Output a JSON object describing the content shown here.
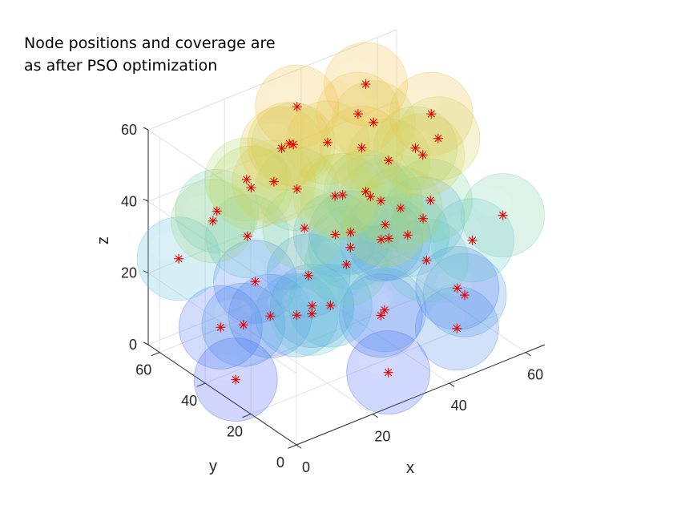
{
  "chart_data": {
    "type": "scatter3d",
    "title_lines": [
      "Node positions and coverage are",
      "as after PSO optimization"
    ],
    "xlabel": "x",
    "ylabel": "y",
    "zlabel": "z",
    "xlim": [
      0,
      65
    ],
    "ylim": [
      0,
      65
    ],
    "zlim": [
      0,
      60
    ],
    "xticks": [
      "0",
      "20",
      "40",
      "60"
    ],
    "yticks": [
      "0",
      "20",
      "40",
      "60"
    ],
    "zticks": [
      "0",
      "20",
      "40",
      "60"
    ],
    "view": "3d-isometric",
    "grid": true,
    "marker": "asterisk",
    "marker_color": "#e60000",
    "sphere_colormap": [
      "#4a5bff",
      "#4f8ee8",
      "#5fc3e0",
      "#7fd4a4",
      "#c8d85c",
      "#f2c24a"
    ],
    "sphere_opacity": "semi-transparent",
    "nodes": [
      [
        5,
        35,
        1
      ],
      [
        30,
        10,
        3
      ],
      [
        60,
        30,
        5
      ],
      [
        40,
        30,
        6
      ],
      [
        10,
        50,
        7
      ],
      [
        20,
        45,
        8
      ],
      [
        25,
        60,
        9
      ],
      [
        55,
        55,
        10
      ],
      [
        45,
        5,
        11
      ],
      [
        10,
        40,
        12
      ],
      [
        25,
        35,
        13
      ],
      [
        35,
        20,
        14
      ],
      [
        50,
        10,
        16
      ],
      [
        30,
        45,
        15
      ],
      [
        60,
        45,
        18
      ],
      [
        15,
        25,
        19
      ],
      [
        40,
        50,
        20
      ],
      [
        50,
        35,
        22
      ],
      [
        5,
        60,
        24
      ],
      [
        35,
        35,
        25
      ],
      [
        20,
        55,
        26
      ],
      [
        55,
        15,
        27
      ],
      [
        10,
        10,
        28
      ],
      [
        40,
        10,
        30
      ],
      [
        25,
        20,
        31
      ],
      [
        45,
        45,
        32
      ],
      [
        15,
        60,
        33
      ],
      [
        60,
        10,
        34
      ],
      [
        50,
        25,
        36
      ],
      [
        30,
        50,
        37
      ],
      [
        40,
        30,
        38
      ],
      [
        20,
        30,
        39
      ],
      [
        5,
        45,
        41
      ],
      [
        55,
        40,
        42
      ],
      [
        35,
        60,
        43
      ],
      [
        30,
        30,
        44
      ],
      [
        45,
        35,
        45
      ],
      [
        15,
        45,
        46
      ],
      [
        25,
        25,
        48
      ],
      [
        50,
        50,
        47
      ],
      [
        55,
        30,
        49
      ],
      [
        35,
        45,
        50
      ],
      [
        15,
        35,
        52
      ],
      [
        45,
        20,
        53
      ],
      [
        25,
        45,
        54
      ],
      [
        35,
        30,
        55
      ],
      [
        20,
        40,
        57
      ],
      [
        40,
        40,
        58
      ],
      [
        30,
        50,
        60
      ],
      [
        45,
        45,
        62
      ],
      [
        50,
        60,
        12
      ],
      [
        60,
        60,
        6
      ],
      [
        22,
        22,
        20
      ],
      [
        48,
        48,
        28
      ],
      [
        38,
        18,
        42
      ],
      [
        18,
        52,
        44
      ],
      [
        52,
        28,
        58
      ],
      [
        28,
        8,
        46
      ]
    ]
  }
}
